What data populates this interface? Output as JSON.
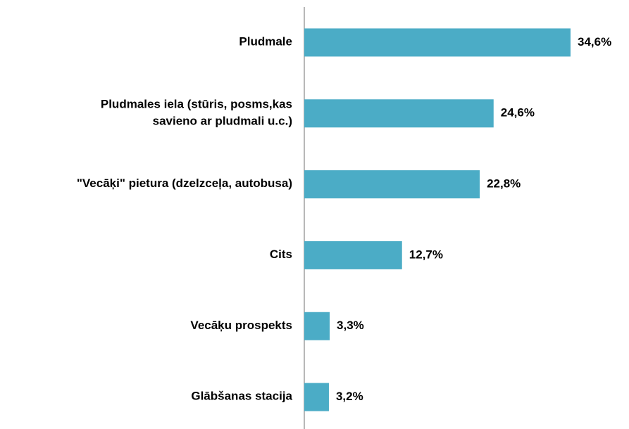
{
  "chart_data": {
    "type": "barh",
    "categories": [
      "Pludmale",
      "Pludmales iela (stūris, posms,kas\nsavieno ar pludmali u.c.)",
      "\"Vecāķi\" pietura (dzelzceļa, autobusa)",
      "Cits",
      "Vecāķu prospekts",
      "Glābšanas stacija"
    ],
    "values": [
      34.6,
      24.6,
      22.8,
      12.7,
      3.3,
      3.2
    ],
    "value_labels": [
      "34,6%",
      "24,6%",
      "22,8%",
      "12,7%",
      "3,3%",
      "3,2%"
    ],
    "color": "#4bacc6",
    "xlim": [
      0,
      40
    ]
  }
}
